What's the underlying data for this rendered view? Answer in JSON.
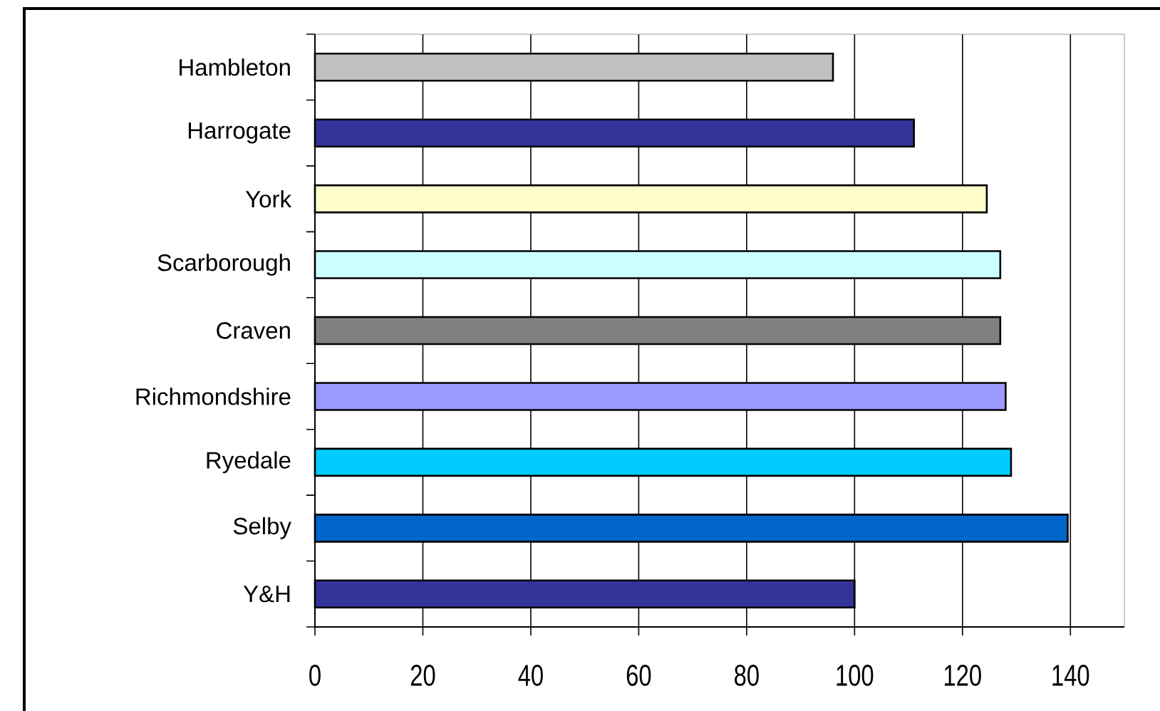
{
  "chart_data": {
    "type": "bar",
    "orientation": "horizontal",
    "categories": [
      "Hambleton",
      "Harrogate",
      "York",
      "Scarborough",
      "Craven",
      "Richmondshire",
      "Ryedale",
      "Selby",
      "Y&H"
    ],
    "values": [
      96,
      111,
      124.5,
      127,
      127,
      128,
      129,
      139.5,
      100
    ],
    "colors": [
      "#c0c0c0",
      "#333399",
      "#ffffcc",
      "#ccffff",
      "#808080",
      "#9999ff",
      "#00ccff",
      "#0066cc",
      "#333399"
    ],
    "xlim": [
      0,
      150
    ],
    "xticks": [
      0,
      20,
      40,
      60,
      80,
      100,
      120,
      140
    ],
    "grid": "x"
  }
}
